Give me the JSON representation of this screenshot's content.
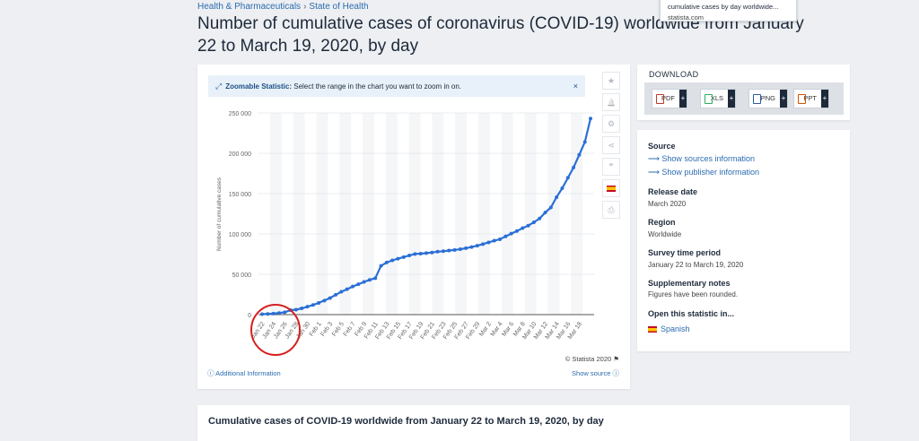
{
  "breadcrumb": {
    "item1": "Health & Pharmaceuticals",
    "separator": "›",
    "item2": "State of Health"
  },
  "page_title": "Number of cumulative cases of coronavirus (COVID-19) worldwide from January 22 to March 19, 2020, by day",
  "tooltip": {
    "line1": "cumulative cases by day worldwide...",
    "line2": "statista.com"
  },
  "zoom_banner": {
    "label": "Zoomable Statistic:",
    "text": "Select the range in the chart you want to zoom in on.",
    "close": "×"
  },
  "side_tools": [
    {
      "icon": "star-icon",
      "glyph": "★"
    },
    {
      "icon": "bell-icon",
      "glyph": "🔔"
    },
    {
      "icon": "gear-icon",
      "glyph": "⚙"
    },
    {
      "icon": "share-icon",
      "glyph": "⋖"
    },
    {
      "icon": "quote-icon",
      "glyph": "❞"
    },
    {
      "icon": "flag-icon",
      "glyph": ""
    },
    {
      "icon": "print-icon",
      "glyph": "⎙"
    }
  ],
  "chart_footer": {
    "copyright": "© Statista 2020",
    "additional_info": "Additional Information",
    "show_source": "Show source"
  },
  "download": {
    "label": "DOWNLOAD",
    "buttons": [
      {
        "label": "PDF",
        "plus": "+",
        "color": "#c0392b"
      },
      {
        "label": "XLS",
        "plus": "+",
        "color": "#27ae60"
      },
      {
        "label": "PNG",
        "plus": "+",
        "color": "#2c5aa0"
      },
      {
        "label": "PPT",
        "plus": "+",
        "color": "#d35400"
      }
    ]
  },
  "info": {
    "source_label": "Source",
    "show_sources": "Show sources information",
    "show_publisher": "Show publisher information",
    "release_date_label": "Release date",
    "release_date": "March 2020",
    "region_label": "Region",
    "region": "Worldwide",
    "survey_label": "Survey time period",
    "survey": "January 22 to March 19, 2020",
    "supp_label": "Supplementary notes",
    "supp": "Figures have been rounded.",
    "open_label": "Open this statistic in...",
    "open_lang": "Spanish"
  },
  "bottom_title": "Cumulative cases of COVID-19 worldwide from January 22 to March 19, 2020, by day",
  "colors": {
    "line": "#2a6fd6",
    "annotation": "#d61f1f",
    "link": "#2b6cb0"
  },
  "chart_data": {
    "type": "line",
    "ylabel": "Number of cumulative cases",
    "ylim": [
      0,
      250000
    ],
    "yticks": [
      0,
      50000,
      100000,
      150000,
      200000,
      250000
    ],
    "ytick_labels": [
      "0",
      "50 000",
      "100 000",
      "150 000",
      "200 000",
      "250 000"
    ],
    "xtick_labels": [
      "Jan 22",
      "Jan 24",
      "Jan 26",
      "Jan 28",
      "Jan 30",
      "Feb 1",
      "Feb 3",
      "Feb 5",
      "Feb 7",
      "Feb 9",
      "Feb 11",
      "Feb 13",
      "Feb 15",
      "Feb 17",
      "Feb 19",
      "Feb 21",
      "Feb 23",
      "Feb 25",
      "Feb 27",
      "Feb 29",
      "Mar 2",
      "Mar 4",
      "Mar 6",
      "Mar 8",
      "Mar 10",
      "Mar 12",
      "Mar 14",
      "Mar 16",
      "Mar 18"
    ],
    "grid": true,
    "series": [
      {
        "values": [
          580,
          850,
          1300,
          2000,
          2900,
          5600,
          6100,
          7800,
          9800,
          11900,
          14500,
          17400,
          20600,
          24600,
          28300,
          31500,
          34900,
          37600,
          40600,
          43100,
          45200,
          60400,
          64600,
          67200,
          69300,
          71300,
          73300,
          75200,
          75600,
          76200,
          77000,
          78000,
          78600,
          79400,
          80100,
          81100,
          82300,
          83800,
          85400,
          87400,
          89500,
          91600,
          93400,
          96900,
          100400,
          103600,
          107200,
          110300,
          114400,
          119100,
          126500,
          132800,
          145600,
          156600,
          169600,
          182400,
          198000,
          214000,
          243000
        ]
      }
    ]
  },
  "annotation": "red-circle-highlight"
}
